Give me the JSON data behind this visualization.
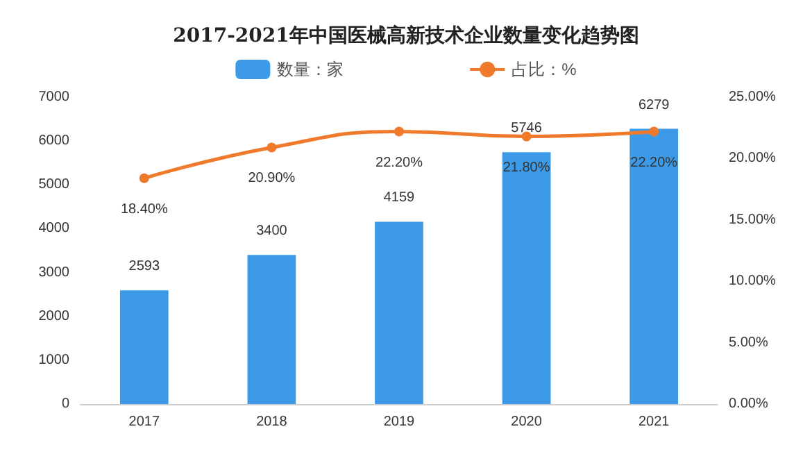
{
  "chart_data": {
    "type": "bar",
    "title": "2017-2021年中国医械高新技术企业数量变化趋势图",
    "categories": [
      "2017",
      "2018",
      "2019",
      "2020",
      "2021"
    ],
    "series": [
      {
        "name": "数量：家",
        "color": "#3d9ae8",
        "values": [
          2593,
          3400,
          4159,
          5746,
          6279
        ],
        "value_labels": [
          "2593",
          "3400",
          "4159",
          "5746",
          "6279"
        ]
      },
      {
        "name": "占比：%",
        "type": "line",
        "axis": "y2",
        "color": "#f07a2b",
        "values": [
          18.4,
          20.9,
          22.2,
          21.8,
          22.2
        ],
        "value_labels": [
          "18.40%",
          "20.90%",
          "22.20%",
          "21.80%",
          "22.20%"
        ]
      }
    ],
    "ylim": [
      0,
      7000
    ],
    "yticks": [
      0,
      1000,
      2000,
      3000,
      4000,
      5000,
      6000,
      7000
    ],
    "y2lim": [
      0,
      25
    ],
    "y2ticks": [
      {
        "value": 0,
        "label": "0.00%"
      },
      {
        "value": 5,
        "label": "5.00%"
      },
      {
        "value": 10,
        "label": "10.00%"
      },
      {
        "value": 15,
        "label": "15.00%"
      },
      {
        "value": 20,
        "label": "20.00%"
      },
      {
        "value": 25,
        "label": "25.00%"
      }
    ],
    "legend": "top",
    "grid": false,
    "marker": "circle",
    "line_style": "solid"
  }
}
